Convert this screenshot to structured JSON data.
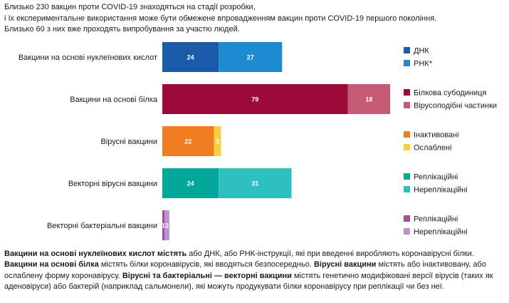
{
  "intro": {
    "line1": "Близько 230 вакцин проти COVID-19 знаходяться на стадії розробки,",
    "line2": "і їх експериментальне використання може бути обмежене впровадженням вакцин проти COVID-19 першого покоління.",
    "line3": "Близько 60 з них вже проходять випробування за участю людей."
  },
  "chart_data": {
    "type": "bar",
    "orientation": "horizontal",
    "stacked": true,
    "title": "",
    "xlabel": "",
    "ylabel": "",
    "xlim": [
      0,
      100
    ],
    "categories": [
      "Вакцини на основі нуклеїнових кислот",
      "Вакцини на основі білка",
      "Вірусні вакцини",
      "Векторні вірусні вакцини",
      "Векторні бактеріальні вакцини"
    ],
    "rows": [
      {
        "label": "Вакцини на основі нуклеїнових кислот",
        "segments": [
          {
            "name": "ДНК",
            "value": 24,
            "color": "#1a5aa8"
          },
          {
            "name": "РНК*",
            "value": 27,
            "color": "#1e8bd1"
          }
        ]
      },
      {
        "label": "Вакцини на основі білка",
        "segments": [
          {
            "name": "Білкова субодиниця",
            "value": 79,
            "color": "#9c0a3a"
          },
          {
            "name": "Вірусоподібні частинки",
            "value": 18,
            "color": "#c65a74"
          }
        ]
      },
      {
        "label": "Вірусні вакцини",
        "segments": [
          {
            "name": "Інактивовані",
            "value": 22,
            "color": "#f07d23"
          },
          {
            "name": "Ослаблені",
            "value": 3,
            "color": "#f9cf3e"
          }
        ]
      },
      {
        "label": "Векторні вірусні вакцини",
        "segments": [
          {
            "name": "Реплікаційні",
            "value": 24,
            "color": "#04a89a"
          },
          {
            "name": "Нереплікаційні",
            "value": 31,
            "color": "#2ec0c0"
          }
        ]
      },
      {
        "label": "Векторні бактеріальні вакцини",
        "segments": [
          {
            "name": "Реплікаційні",
            "value": 1,
            "color": "#a24fa0"
          },
          {
            "name": "Нереплікаційні",
            "value": 2,
            "color": "#b993cd"
          }
        ]
      }
    ]
  },
  "description": {
    "p1_bold": "Вакцини на основі нуклеїнових кислот містять",
    "p1_text": " або ДНК, або РНК-інструкції, які при введенні виробляють коронавірусні білки. ",
    "p2_bold": "Вакцини на основі білка",
    "p2_text": " містять білки коронавірусів, які вводяться безпосередньо. ",
    "p3_bold": "Вірусні вакцини",
    "p3_text": " містять або інактивовану, або ослаблену форму коронавірусу. ",
    "p4_bold": "Вірусні та бактеріальні — векторні вакцини",
    "p4_text": " містять генетично модифіковані версії вірусів (таких як аденовіруси) або бактерій (наприклад сальмонели), які можуть продукувати білки коронавірусу при реплікації чи без неї."
  }
}
